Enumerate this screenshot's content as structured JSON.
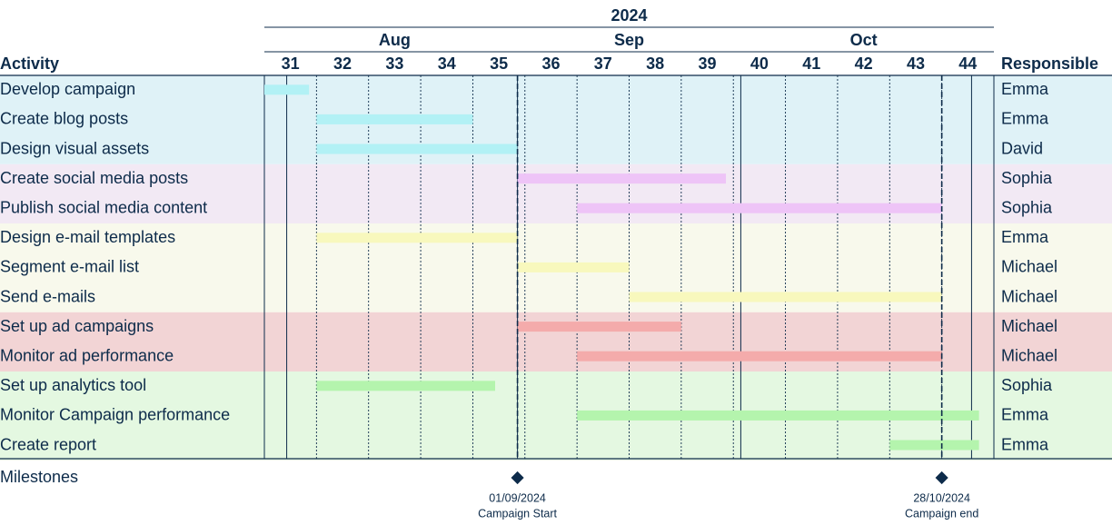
{
  "chart_data": {
    "type": "gantt",
    "year": "2024",
    "months": [
      {
        "label": "Aug",
        "start_week": 31,
        "end_week": 35
      },
      {
        "label": "Sep",
        "start_week": 36,
        "end_week": 39
      },
      {
        "label": "Oct",
        "start_week": 40,
        "end_week": 44
      }
    ],
    "weeks": [
      31,
      32,
      33,
      34,
      35,
      36,
      37,
      38,
      39,
      40,
      41,
      42,
      43,
      44
    ],
    "activity_header": "Activity",
    "responsible_header": "Responsible",
    "milestones_label": "Milestones",
    "groups": [
      {
        "color": "#dff2f7",
        "bar_color": "#b2f1f5",
        "tasks": [
          {
            "name": "Develop campaign",
            "start": "2024-07-29",
            "end": "2024-08-04",
            "responsible": "Emma"
          },
          {
            "name": "Create blog posts",
            "start": "2024-08-05",
            "end": "2024-08-26",
            "responsible": "Emma"
          },
          {
            "name": "Design visual assets",
            "start": "2024-08-05",
            "end": "2024-09-01",
            "responsible": "David"
          }
        ]
      },
      {
        "color": "#f2e9f4",
        "bar_color": "#eec4f7",
        "tasks": [
          {
            "name": "Create social media posts",
            "start": "2024-09-01",
            "end": "2024-09-29",
            "responsible": "Sophia"
          },
          {
            "name": "Publish social media content",
            "start": "2024-09-09",
            "end": "2024-10-28",
            "responsible": "Sophia"
          }
        ]
      },
      {
        "color": "#f8f9ec",
        "bar_color": "#f8f8bd",
        "tasks": [
          {
            "name": "Design e-mail templates",
            "start": "2024-08-05",
            "end": "2024-09-01",
            "responsible": "Emma"
          },
          {
            "name": "Segment e-mail list",
            "start": "2024-09-01",
            "end": "2024-09-16",
            "responsible": "Michael"
          },
          {
            "name": "Send e-mails",
            "start": "2024-09-16",
            "end": "2024-10-28",
            "responsible": "Michael"
          }
        ]
      },
      {
        "color": "#f2d4d5",
        "bar_color": "#f4abab",
        "tasks": [
          {
            "name": "Set up ad campaigns",
            "start": "2024-09-01",
            "end": "2024-09-23",
            "responsible": "Michael"
          },
          {
            "name": "Monitor ad performance",
            "start": "2024-09-09",
            "end": "2024-10-28",
            "responsible": "Michael"
          }
        ]
      },
      {
        "color": "#e4f8e1",
        "bar_color": "#b4f4ad",
        "tasks": [
          {
            "name": "Set up analytics tool",
            "start": "2024-08-05",
            "end": "2024-08-29",
            "responsible": "Sophia"
          },
          {
            "name": "Monitor Campaign performance",
            "start": "2024-09-09",
            "end": "2024-11-02",
            "responsible": "Emma"
          },
          {
            "name": "Create report",
            "start": "2024-10-21",
            "end": "2024-11-02",
            "responsible": "Emma"
          }
        ]
      }
    ],
    "milestones": [
      {
        "date": "2024-09-01",
        "date_label": "01/09/2024",
        "label": "Campaign Start"
      },
      {
        "date": "2024-10-28",
        "date_label": "28/10/2024",
        "label": "Campaign end"
      }
    ],
    "colors": {
      "text": "#0d2b4a",
      "milestone": "#0d2b4a",
      "grid": "#0d2b4a"
    }
  }
}
